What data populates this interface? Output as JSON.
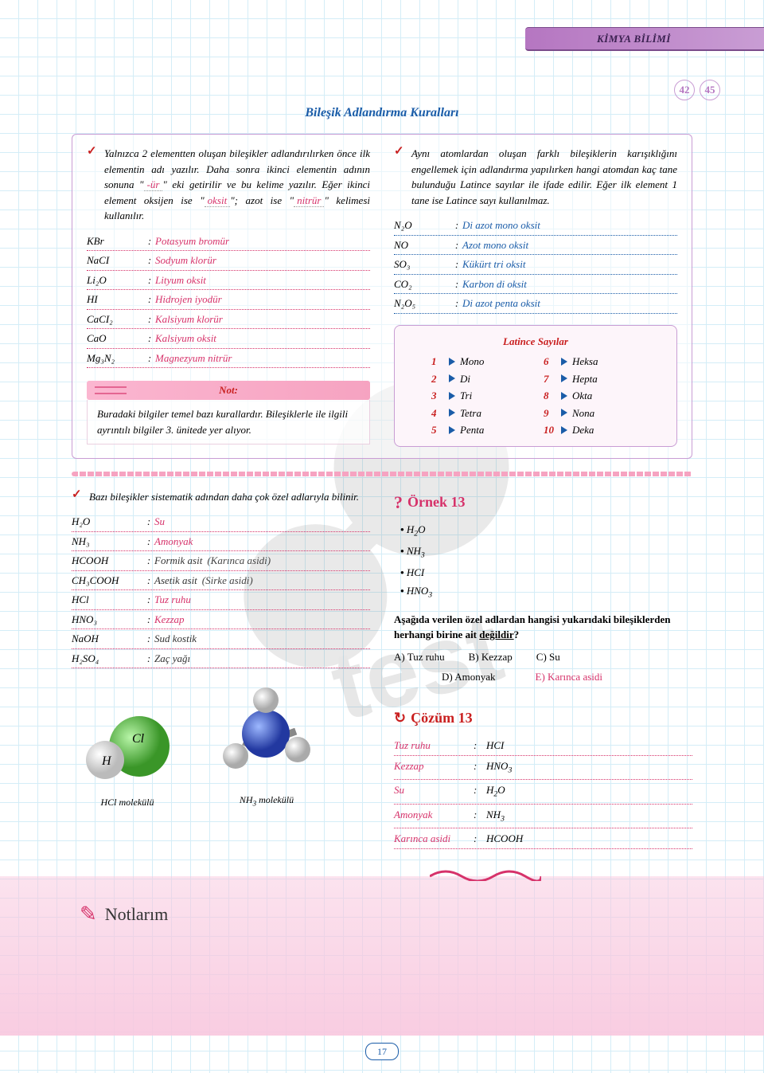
{
  "header": {
    "subject": "KİMYA BİLİMİ"
  },
  "page_circles": [
    "42",
    "45"
  ],
  "title": "Bileşik Adlandırma Kuralları",
  "left_para": {
    "pre": "Yalnızca 2 elementten oluşan bileşikler adlandırılırken önce ilk elementin adı yazılır. Daha sonra ikinci elementin adının sonuna \"",
    "blank1": "-ür",
    "mid1": "\" eki getirilir ve bu kelime yazılır. Eğer ikinci element oksijen ise \"",
    "blank2": "oksit",
    "mid2": "\"; azot ise \"",
    "blank3": "nitrür",
    "post": "\" kelimesi kullanılır."
  },
  "left_defs": [
    {
      "f": "KBr",
      "v": "Potasyum bromür"
    },
    {
      "f": "NaCI",
      "v": "Sodyum klorür"
    },
    {
      "f": "Li₂O",
      "v": "Lityum oksit"
    },
    {
      "f": "HI",
      "v": "Hidrojen iyodür"
    },
    {
      "f": "CaCI₂",
      "v": "Kalsiyum klorür"
    },
    {
      "f": "CaO",
      "v": "Kalsiyum oksit"
    },
    {
      "f": "Mg₃N₂",
      "v": "Magnezyum nitrür"
    }
  ],
  "note": {
    "title": "Not:",
    "body": "Buradaki bilgiler temel bazı kurallardır. Bileşiklerle ile ilgili ayrıntılı bilgiler 3. ünitede yer alıyor."
  },
  "right_para": "Aynı atomlardan oluşan farklı bileşiklerin karışıklığını engellemek için adlandırma yapılırken hangi atomdan kaç tane bulunduğu Latince sayılar ile ifade edilir. Eğer ilk element 1 tane ise Latince sayı kullanılmaz.",
  "right_defs": [
    {
      "f": "N₂O",
      "v": "Di azot mono oksit"
    },
    {
      "f": "NO",
      "v": "Azot mono oksit"
    },
    {
      "f": "SO₃",
      "v": "Kükürt tri oksit"
    },
    {
      "f": "CO₂",
      "v": "Karbon di oksit"
    },
    {
      "f": "N₂O₅",
      "v": "Di azot penta oksit"
    }
  ],
  "latin": {
    "title": "Latince Sayılar",
    "items": [
      {
        "n": "1",
        "name": "Mono"
      },
      {
        "n": "6",
        "name": "Heksa"
      },
      {
        "n": "2",
        "name": "Di"
      },
      {
        "n": "7",
        "name": "Hepta"
      },
      {
        "n": "3",
        "name": "Tri"
      },
      {
        "n": "8",
        "name": "Okta"
      },
      {
        "n": "4",
        "name": "Tetra"
      },
      {
        "n": "9",
        "name": "Nona"
      },
      {
        "n": "5",
        "name": "Penta"
      },
      {
        "n": "10",
        "name": "Deka"
      }
    ]
  },
  "special_intro": "Bazı bileşikler sistematik adından daha çok özel adlarıyla bilinir.",
  "special_defs": [
    {
      "f": "H₂O",
      "v": "Su",
      "red": true
    },
    {
      "f": "NH₃",
      "v": "Amonyak",
      "red": true
    },
    {
      "f": "HCOOH",
      "v": "Formik asit",
      "paren": "(Karınca asidi)"
    },
    {
      "f": "CH₃COOH",
      "v": "Asetik asit",
      "paren": "(Sirke asidi)"
    },
    {
      "f": "HCl",
      "v": "Tuz ruhu",
      "red": true
    },
    {
      "f": "HNO₃",
      "v": "Kezzap",
      "red": true
    },
    {
      "f": "NaOH",
      "v": "Sud kostik"
    },
    {
      "f": "H₂SO₄",
      "v": "Zaç yağı"
    }
  ],
  "mol_labels": {
    "hcl": "HCl molekülü",
    "nh3": "NH₃ molekülü"
  },
  "ornek": {
    "title": "Örnek 13",
    "bullets": [
      "H₂O",
      "NH₃",
      "HCI",
      "HNO₃"
    ],
    "q1": "Aşağıda verilen özel adlardan hangisi yukarıdaki bileşiklerden herhangi birine ait ",
    "q_under": "değildir",
    "q2": "?",
    "opts": [
      {
        "l": "A) Tuz ruhu"
      },
      {
        "l": "B) Kezzap"
      },
      {
        "l": "C) Su"
      },
      {
        "l": "D) Amonyak"
      },
      {
        "l": "E) Karınca asidi",
        "red": true
      }
    ]
  },
  "cozum": {
    "title": "Çözüm 13",
    "rows": [
      {
        "f": "Tuz ruhu",
        "v": "HCI"
      },
      {
        "f": "Kezzap",
        "v": "HNO₃"
      },
      {
        "f": "Su",
        "v": "H₂O"
      },
      {
        "f": "Amonyak",
        "v": "NH₃"
      },
      {
        "f": "Karınca asidi",
        "v": "HCOOH"
      }
    ]
  },
  "notes_title": "Notlarım",
  "page_num": "17",
  "colors": {
    "purple": "#b576c1",
    "blue": "#1a5ca8",
    "red": "#d6326a",
    "darkred": "#c92020",
    "pink": "#f6a3c1"
  }
}
